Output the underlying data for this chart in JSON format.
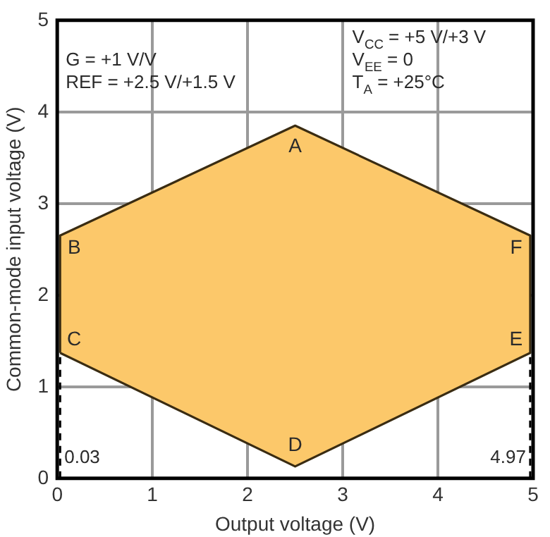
{
  "chart_data": {
    "type": "area",
    "xlabel": "Output voltage (V)",
    "ylabel": "Common-mode input voltage (V)",
    "series": [
      {
        "color": "#fcc86a",
        "x": [
          0.03,
          0.03,
          2.5,
          4.97,
          4.97,
          2.5,
          0.03
        ],
        "values": [
          1.37,
          2.65,
          3.85,
          2.65,
          1.37,
          0.13,
          1.37
        ]
      }
    ],
    "xlim": [
      0,
      5
    ],
    "xticks": [
      0,
      1,
      2,
      3,
      4,
      5
    ],
    "ylim": [
      0,
      5
    ],
    "yticks": [
      0,
      1,
      2,
      3,
      4,
      5
    ],
    "grid": true,
    "legend": false,
    "line_style": "solid",
    "marker": "none",
    "ref_lines": [
      {
        "axis": "x",
        "value": 0.03,
        "label": "0.03",
        "line_style": "dashed",
        "color": "#000000"
      },
      {
        "axis": "x",
        "value": 4.97,
        "label": "4.97",
        "line_style": "dashed",
        "color": "#000000"
      }
    ],
    "annotations": [
      {
        "text": "A",
        "x": 2.5,
        "y": 3.85
      },
      {
        "text": "B",
        "x": 0.03,
        "y": 2.65
      },
      {
        "text": "C",
        "x": 0.03,
        "y": 1.37
      },
      {
        "text": "D",
        "x": 2.5,
        "y": 0.13
      },
      {
        "text": "E",
        "x": 4.97,
        "y": 1.37
      },
      {
        "text": "F",
        "x": 4.97,
        "y": 2.65
      },
      "G = +1 V/V",
      "REF = +2.5 V/+1.5 V",
      "V$_{CC}$ = +5 V/+3 V",
      "V$_{EE}$ = 0",
      "T$_{A}$ = +25°C"
    ]
  }
}
